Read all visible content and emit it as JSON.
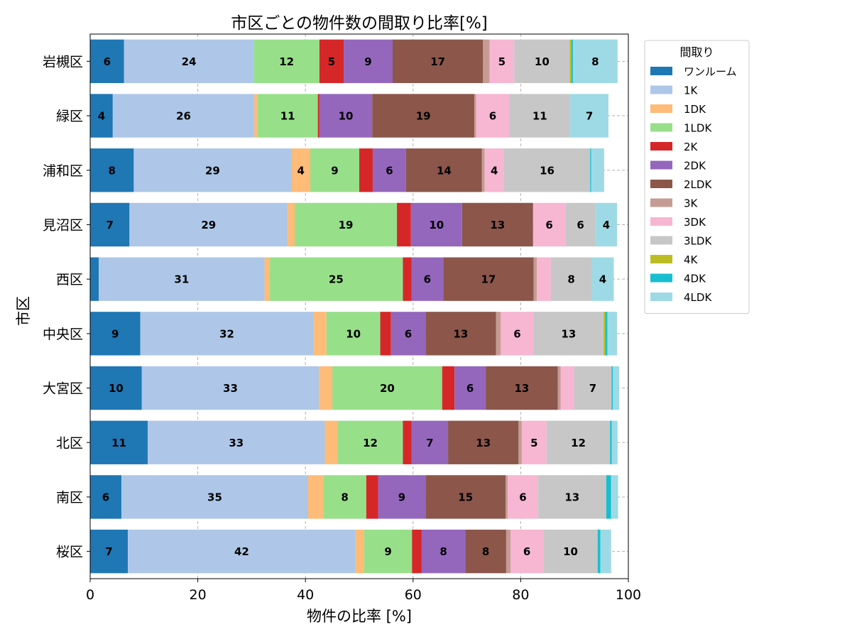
{
  "chart_data": {
    "type": "bar",
    "orientation": "horizontal",
    "stacked": true,
    "title": "市区ごとの物件数の間取り比率[%]",
    "xlabel": "物件の比率 [%]",
    "ylabel": "市区",
    "xlim": [
      0,
      100
    ],
    "xticks": [
      "0",
      "20",
      "40",
      "60",
      "80",
      "100"
    ],
    "grid": true,
    "legend_title": "間取り",
    "legend_position": "outside-right",
    "categories": [
      "岩槻区",
      "緑区",
      "浦和区",
      "見沼区",
      "西区",
      "中央区",
      "大宮区",
      "北区",
      "南区",
      "桜区"
    ],
    "series": [
      {
        "name": "ワンルーム",
        "color": "#1f77b4",
        "values": [
          6.3,
          4.2,
          8.1,
          7.3,
          1.6,
          9.3,
          9.6,
          10.7,
          5.8,
          7.0
        ]
      },
      {
        "name": "1K",
        "color": "#aec7e8",
        "values": [
          24.1,
          26.3,
          29.3,
          29.4,
          30.8,
          32.2,
          32.9,
          32.9,
          34.7,
          42.3
        ]
      },
      {
        "name": "1DK",
        "color": "#ffbb78",
        "values": [
          0,
          0.6,
          3.5,
          1.3,
          0.9,
          2.4,
          2.5,
          2.4,
          2.8,
          1.6
        ]
      },
      {
        "name": "1LDK",
        "color": "#98df8a",
        "values": [
          12.2,
          11.2,
          9.1,
          19.0,
          24.8,
          10.0,
          20.4,
          12.1,
          8.0,
          8.9
        ]
      },
      {
        "name": "2K",
        "color": "#d62728",
        "values": [
          4.5,
          0.3,
          2.5,
          2.6,
          1.6,
          2.0,
          2.3,
          1.6,
          2.2,
          1.8
        ]
      },
      {
        "name": "2DK",
        "color": "#9467bd",
        "values": [
          9.1,
          9.8,
          6.2,
          9.5,
          5.9,
          6.4,
          5.8,
          6.8,
          8.8,
          8.1
        ]
      },
      {
        "name": "2LDK",
        "color": "#8c564b",
        "values": [
          16.8,
          19.0,
          14.1,
          13.2,
          16.8,
          13.1,
          13.4,
          13.1,
          14.9,
          7.6
        ]
      },
      {
        "name": "3K",
        "color": "#c49c94",
        "values": [
          1.2,
          0.3,
          0.5,
          0,
          0.6,
          0.9,
          0.5,
          0.6,
          0.4,
          0.8
        ]
      },
      {
        "name": "3DK",
        "color": "#f7b6d2",
        "values": [
          4.6,
          6.2,
          3.6,
          6.0,
          2.6,
          6.1,
          2.5,
          4.6,
          5.6,
          6.1
        ]
      },
      {
        "name": "3LDK",
        "color": "#c7c7c7",
        "values": [
          10.3,
          11.3,
          16.0,
          5.6,
          7.6,
          13.0,
          7.0,
          11.8,
          12.7,
          10.1
        ]
      },
      {
        "name": "4K",
        "color": "#bcbd22",
        "values": [
          0.3,
          0,
          0,
          0,
          0,
          0.3,
          0,
          0,
          0,
          0
        ]
      },
      {
        "name": "4DK",
        "color": "#17becf",
        "values": [
          0.3,
          0,
          0.2,
          0,
          0,
          0.4,
          0.2,
          0.3,
          0.9,
          0.5
        ]
      },
      {
        "name": "4LDK",
        "color": "#9edae5",
        "values": [
          8.3,
          7.1,
          2.4,
          4.0,
          4.1,
          1.8,
          1.2,
          1.1,
          1.3,
          2.0
        ]
      }
    ]
  }
}
